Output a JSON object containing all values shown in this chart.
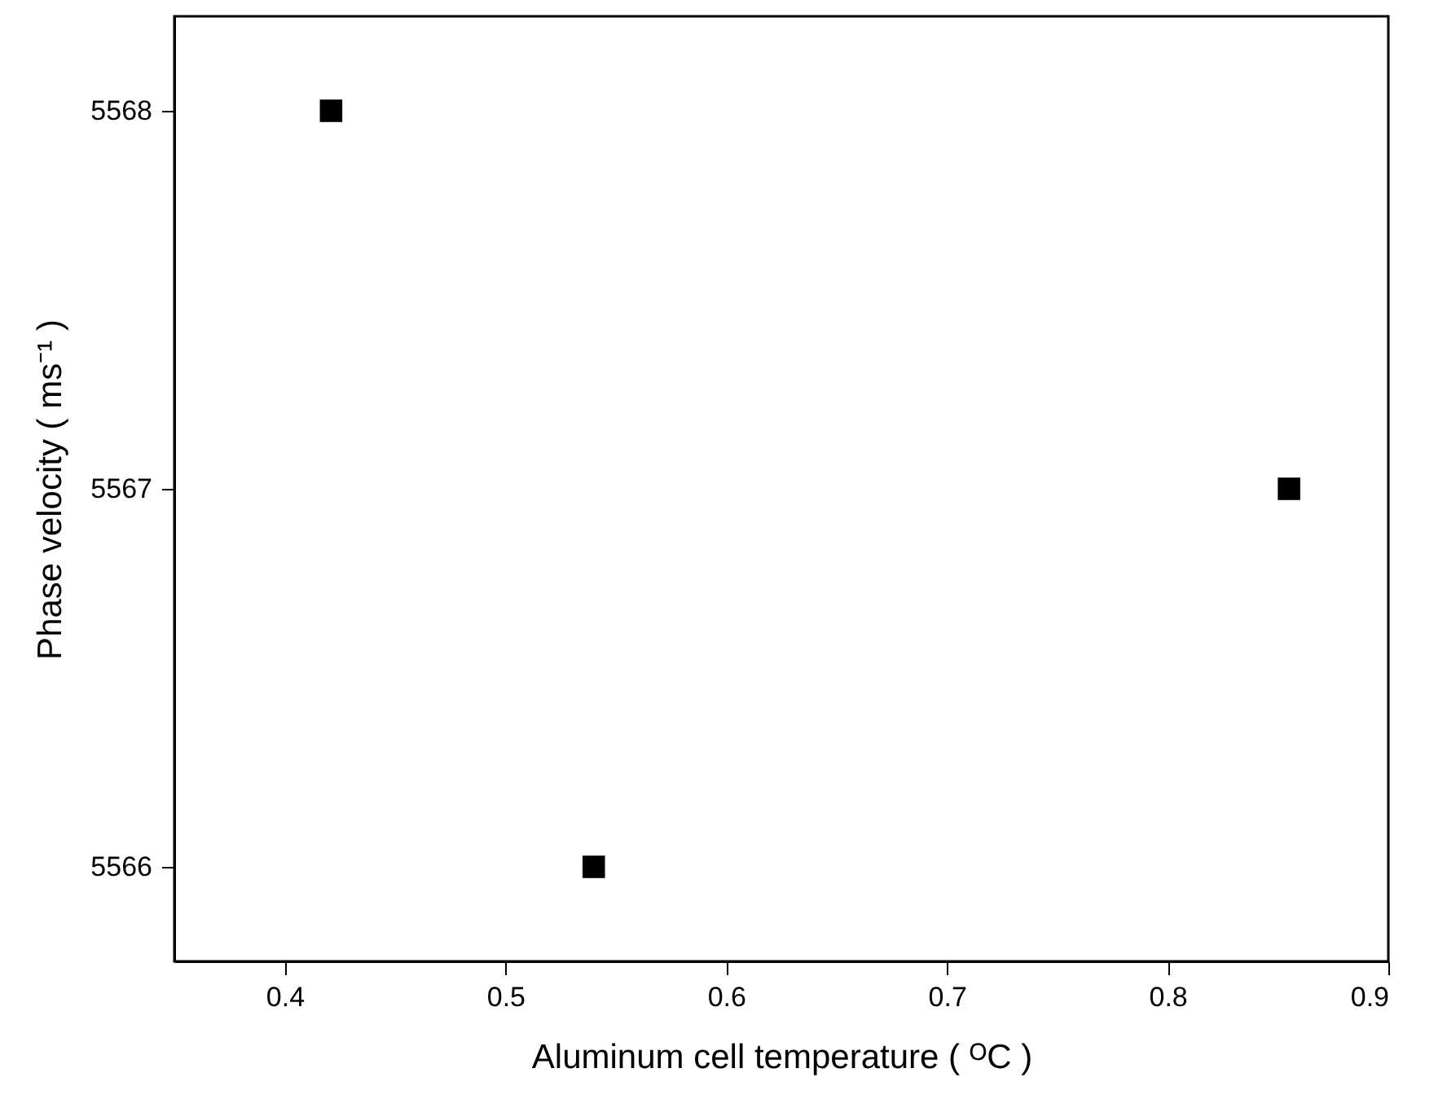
{
  "chart_data": {
    "type": "scatter",
    "xlabel": "Aluminum cell temperature ( ᴼC )",
    "ylabel": "Phase velocity ( ms⁻¹ )",
    "x": [
      0.421,
      0.54,
      0.855
    ],
    "series": [
      {
        "color": "#000000",
        "values": [
          5568,
          5566,
          5567
        ]
      }
    ],
    "xlim": [
      0.35,
      0.9
    ],
    "xticks": [
      0.4,
      0.5,
      0.6,
      0.7,
      0.8,
      0.9
    ],
    "ylim": [
      5565.75,
      5568.25
    ],
    "yticks": [
      5566,
      5567,
      5568
    ],
    "marker": "square",
    "grid": false
  }
}
